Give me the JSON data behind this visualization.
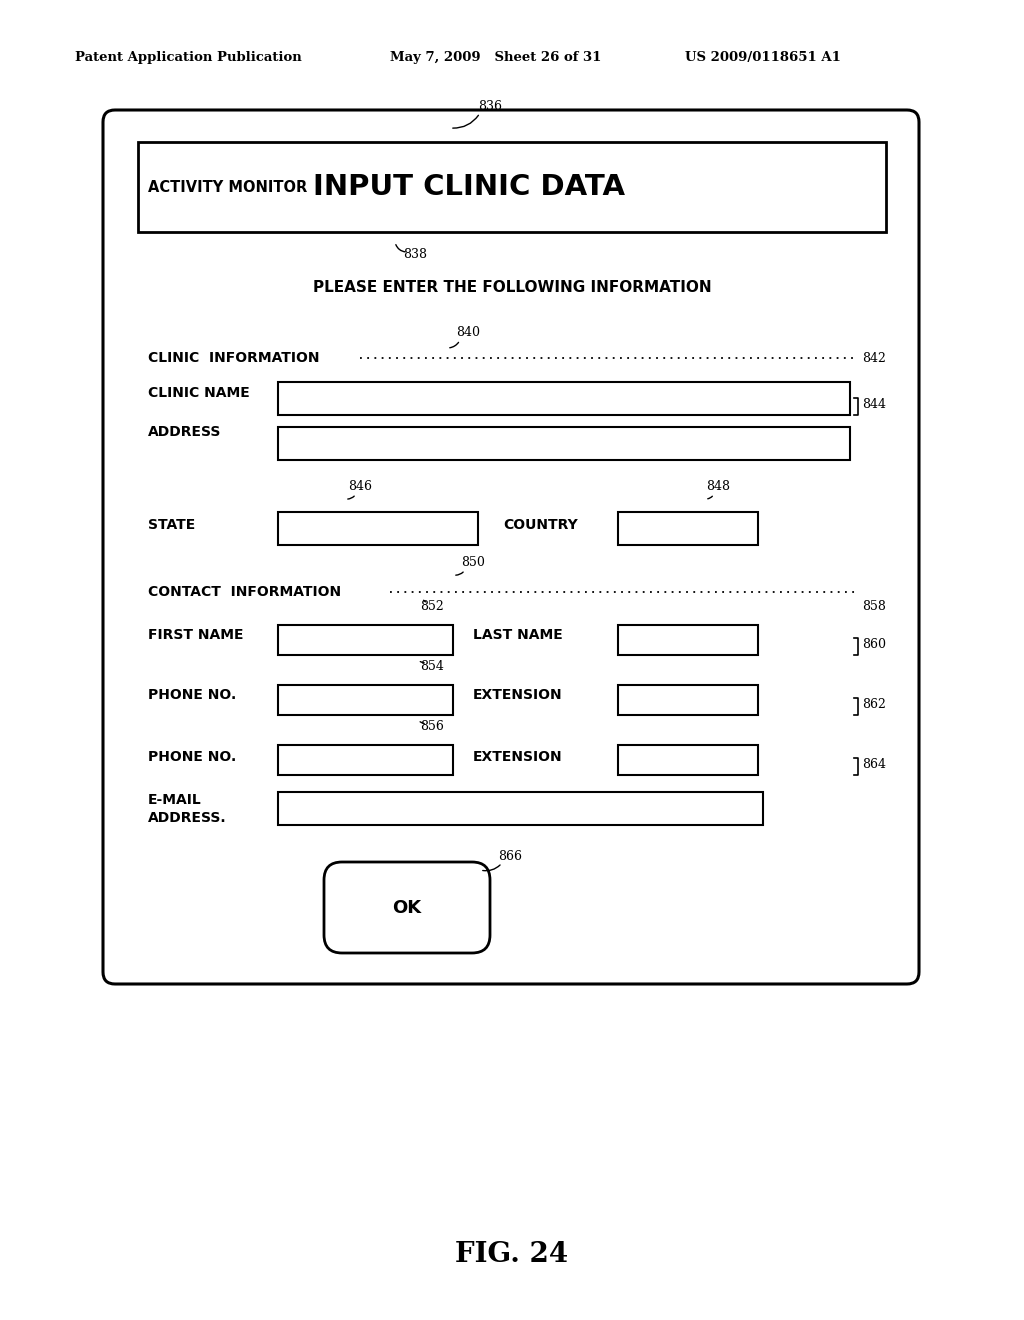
{
  "bg_color": "#ffffff",
  "header_left": "Patent Application Publication",
  "header_mid": "May 7, 2009   Sheet 26 of 31",
  "header_right": "US 2009/0118651 A1",
  "fig_label": "FIG. 24",
  "title_small": "ACTIVITY MONITOR",
  "title_large": "INPUT CLINIC DATA",
  "subtitle": "PLEASE ENTER THE FOLLOWING INFORMATION",
  "label_clinic_info": "CLINIC  INFORMATION",
  "label_clinic_name": "CLINIC NAME",
  "label_address": "ADDRESS",
  "label_state": "STATE",
  "label_country": "COUNTRY",
  "label_contact_info": "CONTACT  INFORMATION",
  "label_first_name": "FIRST NAME",
  "label_last_name": "LAST NAME",
  "label_phone1": "PHONE NO.",
  "label_ext1": "EXTENSION",
  "label_phone2": "PHONE NO.",
  "label_ext2": "EXTENSION",
  "label_email_line1": "E-MAIL",
  "label_email_line2": "ADDRESS.",
  "label_ok": "OK",
  "ref_836": "836",
  "ref_838": "838",
  "ref_840": "840",
  "ref_842": "842",
  "ref_844": "844",
  "ref_846": "846",
  "ref_848": "848",
  "ref_850": "850",
  "ref_852": "852",
  "ref_854": "854",
  "ref_856": "856",
  "ref_858": "858",
  "ref_860": "860",
  "ref_862": "862",
  "ref_864": "864",
  "ref_866": "866"
}
